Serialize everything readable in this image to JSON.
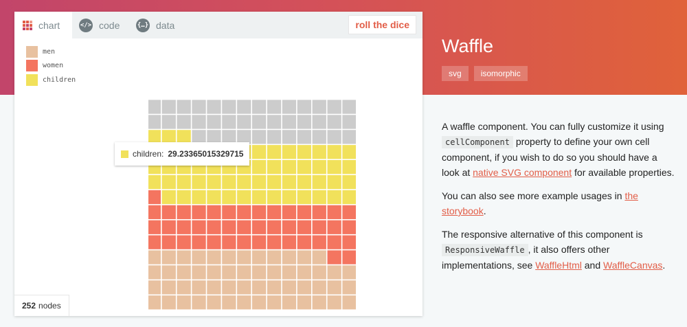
{
  "panel": {
    "tabs": [
      {
        "label": "chart",
        "icon": "waffle-grid-icon",
        "active": true
      },
      {
        "label": "code",
        "icon": "code-icon",
        "icon_glyph": "</>"
      },
      {
        "label": "data",
        "icon": "data-icon",
        "icon_glyph": "{…}"
      }
    ],
    "dice_label": "roll the dice",
    "nodes": {
      "count": "252",
      "label": "nodes"
    },
    "tooltip": {
      "label": "children:",
      "value": "29.23365015329715",
      "color": "#f1e15b"
    }
  },
  "colors": {
    "men": "#e8c1a0",
    "women": "#f47560",
    "children": "#f1e15b",
    "empty": "#cccccc",
    "accent": "#e25d47"
  },
  "chart_data": {
    "type": "waffle",
    "rows": 14,
    "columns": 14,
    "fill_direction": "bottom-up",
    "total": 100,
    "series": [
      {
        "name": "men",
        "value": 27.6,
        "cells": 54
      },
      {
        "name": "women",
        "value": 23.1,
        "cells": 45
      },
      {
        "name": "children",
        "value": 29.23365015329715,
        "cells": 58
      }
    ],
    "empty_cells": 39
  },
  "sidebar": {
    "title": "Waffle",
    "tags": [
      "svg",
      "isomorphic"
    ],
    "p1": {
      "t1": "A waffle component. You can fully customize it using",
      "code1": "cellComponent",
      "t2": "property to define your own cell component, if you wish to do so you should have a look at",
      "link1": "native SVG component",
      "t3": "for available properties."
    },
    "p2": {
      "t1": "You can also see more example usages in",
      "link1": "the storybook",
      "t2": "."
    },
    "p3": {
      "t1": "The responsive alternative of this component is",
      "code1": "ResponsiveWaffle",
      "t2": ", it also offers other implementations, see",
      "link1": "WaffleHtml",
      "t3": "and",
      "link2": "WaffleCanvas",
      "t4": "."
    }
  }
}
